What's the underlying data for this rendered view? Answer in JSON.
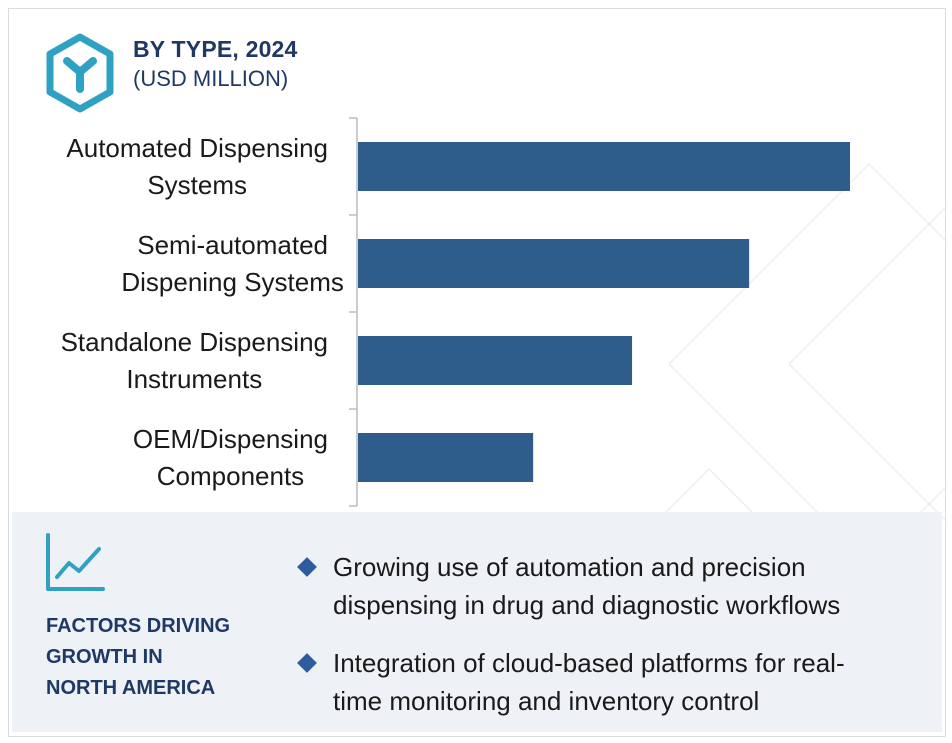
{
  "header": {
    "icon": "cube-y-icon",
    "title": "BY TYPE, 2024",
    "subtitle": "(USD MILLION)"
  },
  "colors": {
    "bar": "#2e5d8c",
    "accent": "#1f3864",
    "icon": "#2fa2c3",
    "panel": "#eef1f6"
  },
  "chart_data": {
    "type": "bar",
    "orientation": "horizontal",
    "categories": [
      "Automated Dispensing Systems",
      "Semi-automated Dispening Systems",
      "Standalone Dispensing Instruments",
      "OEM/Dispensing Components"
    ],
    "category_lines": [
      [
        "Automated Dispensing",
        "Systems"
      ],
      [
        "Semi-automated",
        "Dispening Systems"
      ],
      [
        "Standalone Dispensing",
        "Instruments"
      ],
      [
        "OEM/Dispensing",
        "Components"
      ]
    ],
    "values": [
      100,
      79.5,
      55.7,
      35.6
    ],
    "value_labels_shown": false,
    "xaxis_shown": false,
    "xlim": [
      0,
      100
    ],
    "grid": false,
    "legend": "none"
  },
  "factors": {
    "icon": "trend-chart-icon",
    "title_lines": [
      "FACTORS DRIVING",
      "GROWTH IN",
      "NORTH AMERICA"
    ],
    "bullets": [
      {
        "lines": [
          "Growing use of automation and precision",
          "dispensing in drug and diagnostic workflows"
        ]
      },
      {
        "lines": [
          "Integration of cloud-based platforms for real-",
          "time monitoring and inventory control"
        ]
      }
    ]
  }
}
